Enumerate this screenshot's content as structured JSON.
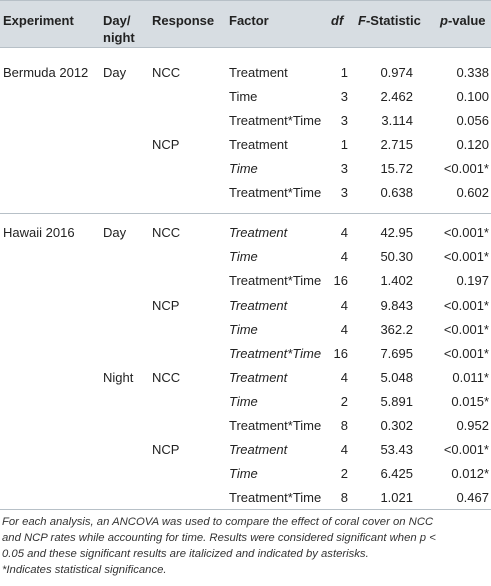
{
  "headers": {
    "experiment": "Experiment",
    "day_night_1": "Day/",
    "day_night_2": "night",
    "response": "Response",
    "factor": "Factor",
    "df": "df",
    "f_stat_italic": "F",
    "f_stat_rest": "-Statistic",
    "p_italic": "p",
    "p_rest": "-value"
  },
  "rows": [
    {
      "experiment": "Bermuda 2012",
      "daynight": "Day",
      "response": "NCC",
      "factor": "Treatment",
      "df": "1",
      "f": "0.974",
      "p": "0.338",
      "sig": false
    },
    {
      "experiment": "",
      "daynight": "",
      "response": "",
      "factor": "Time",
      "df": "3",
      "f": "2.462",
      "p": "0.100",
      "sig": false
    },
    {
      "experiment": "",
      "daynight": "",
      "response": "",
      "factor": "Treatment*Time",
      "df": "3",
      "f": "3.114",
      "p": "0.056",
      "sig": false
    },
    {
      "experiment": "",
      "daynight": "",
      "response": "NCP",
      "factor": "Treatment",
      "df": "1",
      "f": "2.715",
      "p": "0.120",
      "sig": false
    },
    {
      "experiment": "",
      "daynight": "",
      "response": "",
      "factor": "Time",
      "df": "3",
      "f": "15.72",
      "p": "<0.001*",
      "sig": true
    },
    {
      "experiment": "",
      "daynight": "",
      "response": "",
      "factor": "Treatment*Time",
      "df": "3",
      "f": "0.638",
      "p": "0.602",
      "sig": false
    },
    {
      "experiment": "Hawaii 2016",
      "daynight": "Day",
      "response": "NCC",
      "factor": "Treatment",
      "df": "4",
      "f": "42.95",
      "p": "<0.001*",
      "sig": true
    },
    {
      "experiment": "",
      "daynight": "",
      "response": "",
      "factor": "Time",
      "df": "4",
      "f": "50.30",
      "p": "<0.001*",
      "sig": true
    },
    {
      "experiment": "",
      "daynight": "",
      "response": "",
      "factor": "Treatment*Time",
      "df": "16",
      "f": "1.402",
      "p": "0.197",
      "sig": false
    },
    {
      "experiment": "",
      "daynight": "",
      "response": "NCP",
      "factor": "Treatment",
      "df": "4",
      "f": "9.843",
      "p": "<0.001*",
      "sig": true
    },
    {
      "experiment": "",
      "daynight": "",
      "response": "",
      "factor": "Time",
      "df": "4",
      "f": "362.2",
      "p": "<0.001*",
      "sig": true
    },
    {
      "experiment": "",
      "daynight": "",
      "response": "",
      "factor": "Treatment*Time",
      "df": "16",
      "f": "7.695",
      "p": "<0.001*",
      "sig": true
    },
    {
      "experiment": "",
      "daynight": "Night",
      "response": "NCC",
      "factor": "Treatment",
      "df": "4",
      "f": "5.048",
      "p": "0.011*",
      "sig": true
    },
    {
      "experiment": "",
      "daynight": "",
      "response": "",
      "factor": "Time",
      "df": "2",
      "f": "5.891",
      "p": "0.015*",
      "sig": true
    },
    {
      "experiment": "",
      "daynight": "",
      "response": "",
      "factor": "Treatment*Time",
      "df": "8",
      "f": "0.302",
      "p": "0.952",
      "sig": false
    },
    {
      "experiment": "",
      "daynight": "",
      "response": "NCP",
      "factor": "Treatment",
      "df": "4",
      "f": "53.43",
      "p": "<0.001*",
      "sig": true
    },
    {
      "experiment": "",
      "daynight": "",
      "response": "",
      "factor": "Time",
      "df": "2",
      "f": "6.425",
      "p": "0.012*",
      "sig": true
    },
    {
      "experiment": "",
      "daynight": "",
      "response": "",
      "factor": "Treatment*Time",
      "df": "8",
      "f": "1.021",
      "p": "0.467",
      "sig": false
    }
  ],
  "footnote": {
    "line1": "For each analysis, an ANCOVA was used to compare the effect of coral cover on NCC",
    "line2": "and NCP rates while accounting for time. Results were considered significant when p <",
    "line3": "0.05 and these significant results are italicized and indicated by asterisks.",
    "line4": "*Indicates statistical significance."
  }
}
